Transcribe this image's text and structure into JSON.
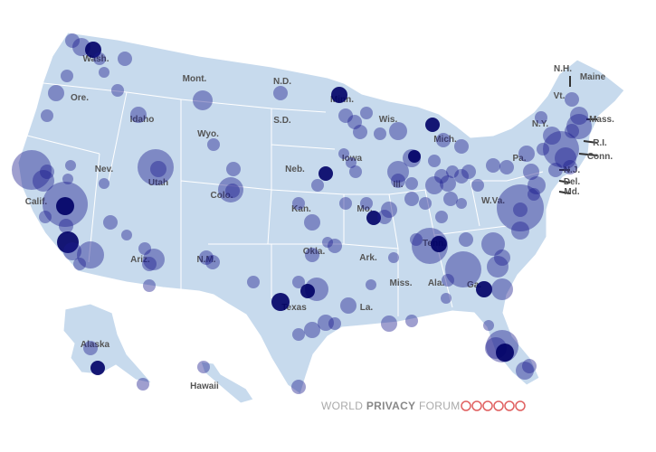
{
  "map": {
    "state_labels": [
      "Wash.",
      "Ore.",
      "Idaho",
      "Mont.",
      "N.D.",
      "S.D.",
      "Wyo.",
      "Nev.",
      "Utah",
      "Colo.",
      "Neb.",
      "Kan.",
      "Iowa",
      "Minn.",
      "Wis.",
      "Mich.",
      "Ill.",
      "Mo.",
      "Okla.",
      "Ark.",
      "Texas",
      "La.",
      "Miss.",
      "Ala.",
      "Ga.",
      "Tenn.",
      "W.Va.",
      "Pa.",
      "N.Y.",
      "Vt.",
      "N.H.",
      "Maine",
      "Mass.",
      "R.I.",
      "Conn.",
      "N.J.",
      "Del.",
      "Md.",
      "Alaska",
      "Hawaii",
      "Calif.",
      "Ariz.",
      "N.M."
    ]
  },
  "footer": {
    "brand": [
      "WORLD",
      "PRIVACY",
      "FORUM"
    ]
  }
}
